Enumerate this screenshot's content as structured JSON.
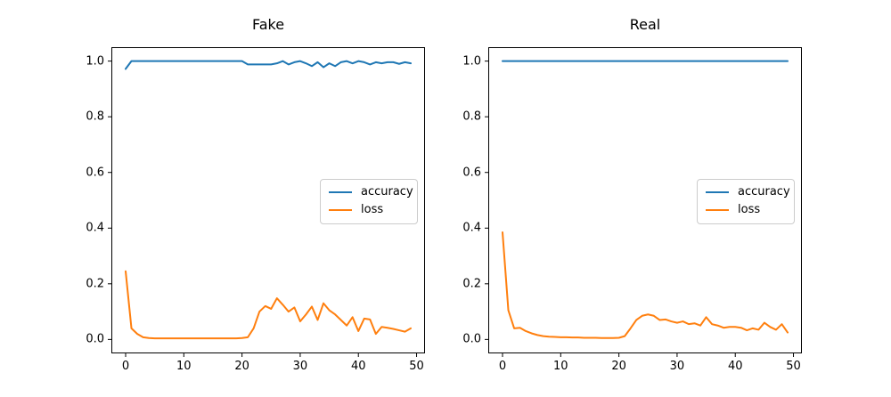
{
  "figure": {
    "background": "#ffffff"
  },
  "colors": {
    "accuracy": "#1f77b4",
    "loss": "#ff7f0e",
    "axis": "#000000",
    "legend_border": "#cccccc"
  },
  "legend": {
    "items": [
      {
        "label": "accuracy",
        "color_key": "accuracy"
      },
      {
        "label": "loss",
        "color_key": "loss"
      }
    ]
  },
  "chart_data": [
    {
      "type": "line",
      "title": "Fake",
      "xlabel": "",
      "ylabel": "",
      "xlim": [
        -2.45,
        51.45
      ],
      "ylim": [
        -0.05,
        1.05
      ],
      "xticks": [
        0,
        10,
        20,
        30,
        40,
        50
      ],
      "xticklabels": [
        "0",
        "10",
        "20",
        "30",
        "40",
        "50"
      ],
      "yticks": [
        0.0,
        0.2,
        0.4,
        0.6,
        0.8,
        1.0
      ],
      "yticklabels": [
        "0.0",
        "0.2",
        "0.4",
        "0.6",
        "0.8",
        "1.0"
      ],
      "grid": false,
      "legend_position": "center right",
      "x": [
        0,
        1,
        2,
        3,
        4,
        5,
        6,
        7,
        8,
        9,
        10,
        11,
        12,
        13,
        14,
        15,
        16,
        17,
        18,
        19,
        20,
        21,
        22,
        23,
        24,
        25,
        26,
        27,
        28,
        29,
        30,
        31,
        32,
        33,
        34,
        35,
        36,
        37,
        38,
        39,
        40,
        41,
        42,
        43,
        44,
        45,
        46,
        47,
        48,
        49
      ],
      "series": [
        {
          "name": "accuracy",
          "color_key": "accuracy",
          "values": [
            0.972,
            1,
            1,
            1,
            1,
            1,
            1,
            1,
            1,
            1,
            1,
            1,
            1,
            1,
            1,
            1,
            1,
            1,
            1,
            1,
            1,
            0.988,
            0.988,
            0.988,
            0.988,
            0.988,
            0.992,
            1,
            0.988,
            0.996,
            1,
            0.992,
            0.982,
            0.996,
            0.978,
            0.992,
            0.982,
            0.996,
            1,
            0.992,
            1,
            0.996,
            0.988,
            0.996,
            0.992,
            0.996,
            0.996,
            0.99,
            0.996,
            0.992
          ]
        },
        {
          "name": "loss",
          "color_key": "loss",
          "values": [
            0.245,
            0.04,
            0.02,
            0.008,
            0.005,
            0.004,
            0.004,
            0.004,
            0.004,
            0.004,
            0.004,
            0.004,
            0.004,
            0.004,
            0.004,
            0.004,
            0.004,
            0.004,
            0.004,
            0.004,
            0.005,
            0.008,
            0.04,
            0.1,
            0.12,
            0.11,
            0.148,
            0.125,
            0.1,
            0.115,
            0.065,
            0.09,
            0.118,
            0.07,
            0.13,
            0.105,
            0.09,
            0.07,
            0.05,
            0.08,
            0.03,
            0.075,
            0.072,
            0.02,
            0.045,
            0.042,
            0.038,
            0.033,
            0.028,
            0.04
          ]
        }
      ]
    },
    {
      "type": "line",
      "title": "Real",
      "xlabel": "",
      "ylabel": "",
      "xlim": [
        -2.45,
        51.45
      ],
      "ylim": [
        -0.05,
        1.05
      ],
      "xticks": [
        0,
        10,
        20,
        30,
        40,
        50
      ],
      "xticklabels": [
        "0",
        "10",
        "20",
        "30",
        "40",
        "50"
      ],
      "yticks": [
        0.0,
        0.2,
        0.4,
        0.6,
        0.8,
        1.0
      ],
      "yticklabels": [
        "0.0",
        "0.2",
        "0.4",
        "0.6",
        "0.8",
        "1.0"
      ],
      "grid": false,
      "legend_position": "center right",
      "x": [
        0,
        1,
        2,
        3,
        4,
        5,
        6,
        7,
        8,
        9,
        10,
        11,
        12,
        13,
        14,
        15,
        16,
        17,
        18,
        19,
        20,
        21,
        22,
        23,
        24,
        25,
        26,
        27,
        28,
        29,
        30,
        31,
        32,
        33,
        34,
        35,
        36,
        37,
        38,
        39,
        40,
        41,
        42,
        43,
        44,
        45,
        46,
        47,
        48,
        49
      ],
      "series": [
        {
          "name": "accuracy",
          "color_key": "accuracy",
          "values": [
            1,
            1,
            1,
            1,
            1,
            1,
            1,
            1,
            1,
            1,
            1,
            1,
            1,
            1,
            1,
            1,
            1,
            1,
            1,
            1,
            1,
            1,
            1,
            1,
            1,
            1,
            1,
            1,
            1,
            1,
            1,
            1,
            1,
            1,
            1,
            1,
            1,
            1,
            1,
            1,
            1,
            1,
            1,
            1,
            1,
            1,
            1,
            1,
            1,
            1
          ]
        },
        {
          "name": "loss",
          "color_key": "loss",
          "values": [
            0.385,
            0.105,
            0.04,
            0.042,
            0.03,
            0.022,
            0.016,
            0.012,
            0.01,
            0.009,
            0.008,
            0.008,
            0.007,
            0.007,
            0.006,
            0.006,
            0.006,
            0.005,
            0.005,
            0.005,
            0.006,
            0.012,
            0.04,
            0.07,
            0.085,
            0.09,
            0.085,
            0.07,
            0.072,
            0.065,
            0.06,
            0.065,
            0.055,
            0.058,
            0.05,
            0.08,
            0.055,
            0.05,
            0.042,
            0.045,
            0.045,
            0.042,
            0.033,
            0.04,
            0.035,
            0.06,
            0.045,
            0.035,
            0.055,
            0.025
          ]
        }
      ]
    }
  ]
}
